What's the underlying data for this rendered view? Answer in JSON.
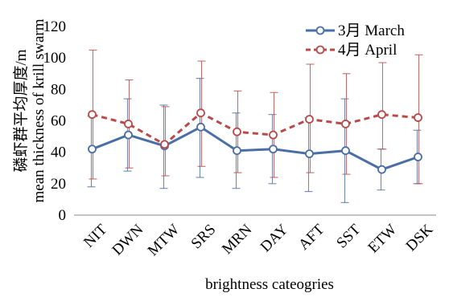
{
  "chart_data": {
    "type": "line",
    "xlabel": "brightness cateogries",
    "ylabel_cn": "磷虾群平均厚度/m",
    "ylabel_en": "mean thickness of krill swarm",
    "categories": [
      "NIT",
      "DWN",
      "MTW",
      "SRS",
      "MRN",
      "DAY",
      "AFT",
      "SST",
      "ETW",
      "DSK"
    ],
    "ylim": [
      0,
      120
    ],
    "yticks": [
      0,
      20,
      40,
      60,
      80,
      100,
      120
    ],
    "grid": false,
    "legend_position": "top-right",
    "series": [
      {
        "name": "3月 March",
        "color": "#4a6fa5",
        "line_style": "solid",
        "marker": "open-circle",
        "values": [
          42,
          51,
          44,
          56,
          41,
          42,
          39,
          41,
          29,
          37
        ],
        "error_low": [
          18,
          28,
          17,
          24,
          17,
          20,
          15,
          8,
          16,
          20
        ],
        "error_high": [
          63,
          74,
          70,
          87,
          65,
          64,
          62,
          74,
          42,
          54
        ]
      },
      {
        "name": "4月 April",
        "color": "#b84a4a",
        "line_style": "dashed",
        "marker": "open-circle",
        "values": [
          64,
          58,
          45,
          65,
          53,
          51,
          61,
          58,
          64,
          62
        ],
        "error_low": [
          23,
          30,
          25,
          31,
          27,
          24,
          27,
          26,
          42,
          20
        ],
        "error_high": [
          105,
          86,
          69,
          98,
          79,
          78,
          96,
          90,
          97,
          102
        ]
      }
    ]
  }
}
